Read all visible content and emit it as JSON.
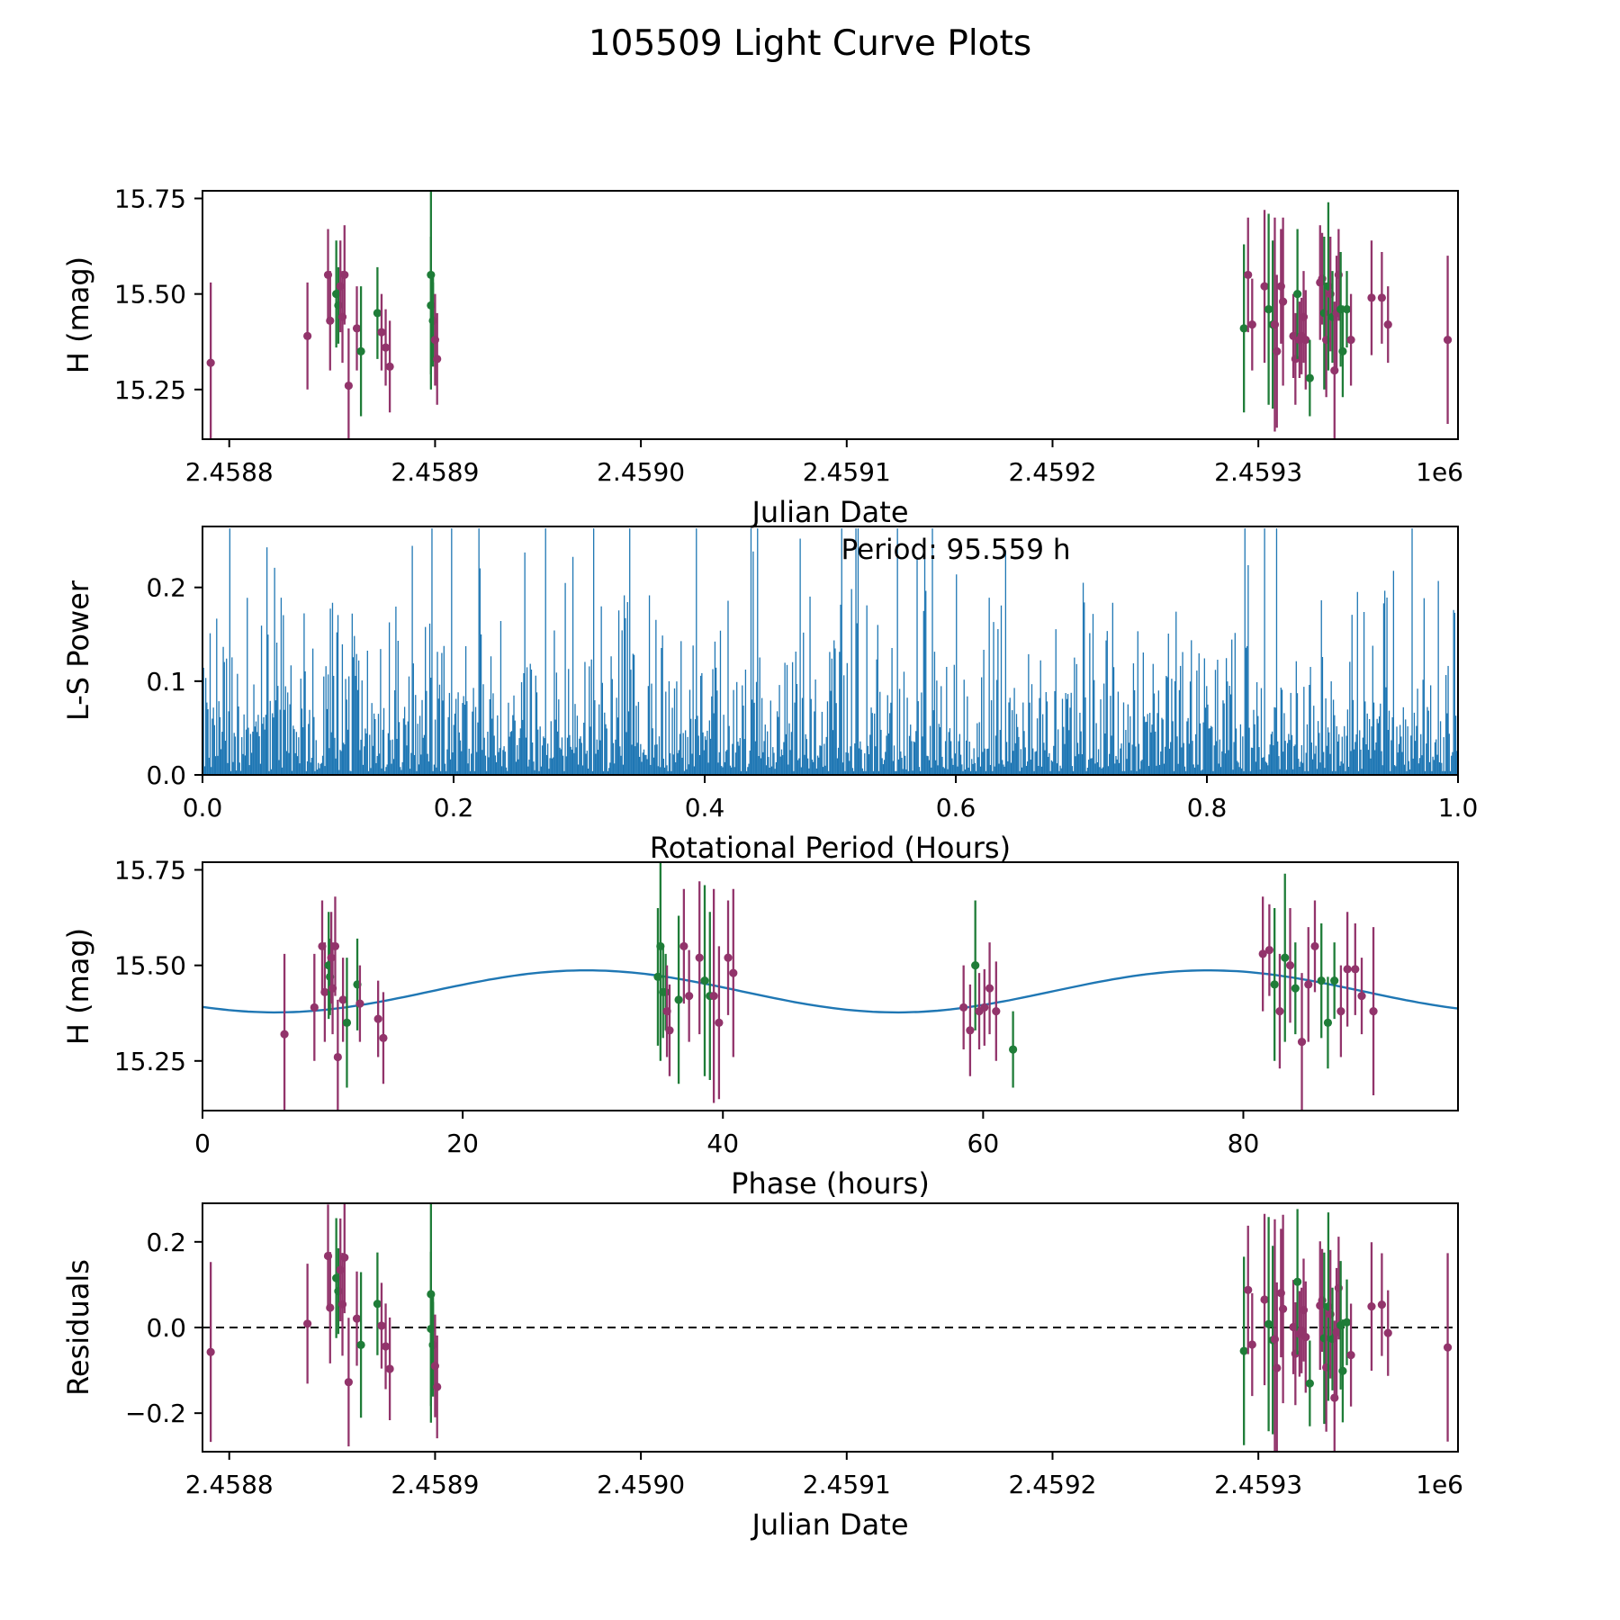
{
  "title": "105509 Light Curve Plots",
  "colors": {
    "series_purple": "#92346b",
    "series_green": "#1f7d38",
    "fit_line": "#1f77b4",
    "periodogram": "#1f77b4",
    "axis": "#000000",
    "zero_line": "#000000"
  },
  "chart_data": [
    {
      "id": "light_curve",
      "type": "errorbar",
      "x_field": "jd",
      "y_field": "m",
      "xlabel": "Julian Date",
      "ylabel": "H (mag)",
      "x_offset_text": "1e6",
      "xlim": [
        2458787,
        2459397
      ],
      "ylim": [
        15.12,
        15.77
      ],
      "xticks": [
        {
          "v": 2458800,
          "label": "2.4588"
        },
        {
          "v": 2458900,
          "label": "2.4589"
        },
        {
          "v": 2459000,
          "label": "2.4590"
        },
        {
          "v": 2459100,
          "label": "2.4591"
        },
        {
          "v": 2459200,
          "label": "2.4592"
        },
        {
          "v": 2459300,
          "label": "2.4593"
        }
      ],
      "yticks": [
        {
          "v": 15.25,
          "label": "15.25"
        },
        {
          "v": 15.5,
          "label": "15.50"
        },
        {
          "v": 15.75,
          "label": "15.75"
        }
      ],
      "points": [
        {
          "jd": 2458791,
          "ph": 6.3,
          "m": 15.32,
          "e": 0.21,
          "s": "p"
        },
        {
          "jd": 2458838,
          "ph": 8.6,
          "m": 15.39,
          "e": 0.14,
          "s": "p"
        },
        {
          "jd": 2458848,
          "ph": 9.2,
          "m": 15.55,
          "e": 0.12,
          "s": "p"
        },
        {
          "jd": 2458849,
          "ph": 9.4,
          "m": 15.43,
          "e": 0.13,
          "s": "p"
        },
        {
          "jd": 2458852,
          "ph": 9.7,
          "m": 15.5,
          "e": 0.14,
          "s": "g"
        },
        {
          "jd": 2458853,
          "ph": 9.8,
          "m": 15.47,
          "e": 0.1,
          "s": "g"
        },
        {
          "jd": 2458854,
          "ph": 9.9,
          "m": 15.52,
          "e": 0.12,
          "s": "p"
        },
        {
          "jd": 2458855,
          "ph": 10.0,
          "m": 15.44,
          "e": 0.12,
          "s": "p"
        },
        {
          "jd": 2458856,
          "ph": 10.2,
          "m": 15.55,
          "e": 0.13,
          "s": "p"
        },
        {
          "jd": 2458858,
          "ph": 10.4,
          "m": 15.26,
          "e": 0.15,
          "s": "p"
        },
        {
          "jd": 2458862,
          "ph": 10.8,
          "m": 15.41,
          "e": 0.11,
          "s": "p"
        },
        {
          "jd": 2458864,
          "ph": 11.1,
          "m": 15.35,
          "e": 0.17,
          "s": "g"
        },
        {
          "jd": 2458872,
          "ph": 11.9,
          "m": 15.45,
          "e": 0.12,
          "s": "g"
        },
        {
          "jd": 2458874,
          "ph": 12.1,
          "m": 15.4,
          "e": 0.1,
          "s": "p"
        },
        {
          "jd": 2458876,
          "ph": 13.5,
          "m": 15.36,
          "e": 0.1,
          "s": "p"
        },
        {
          "jd": 2458878,
          "ph": 13.9,
          "m": 15.31,
          "e": 0.12,
          "s": "p"
        },
        {
          "jd": 2458898,
          "ph": 35.0,
          "m": 15.47,
          "e": 0.18,
          "s": "g"
        },
        {
          "jd": 2458898,
          "ph": 35.2,
          "m": 15.55,
          "e": 0.3,
          "s": "g"
        },
        {
          "jd": 2458899,
          "ph": 35.4,
          "m": 15.43,
          "e": 0.12,
          "s": "g"
        },
        {
          "jd": 2458899,
          "ph": 35.6,
          "m": 15.43,
          "e": 0.1,
          "s": "g"
        },
        {
          "jd": 2458900,
          "ph": 35.7,
          "m": 15.38,
          "e": 0.12,
          "s": "p"
        },
        {
          "jd": 2458901,
          "ph": 35.9,
          "m": 15.33,
          "e": 0.12,
          "s": "p"
        },
        {
          "jd": 2459293,
          "ph": 36.6,
          "m": 15.41,
          "e": 0.22,
          "s": "g"
        },
        {
          "jd": 2459295,
          "ph": 37.0,
          "m": 15.55,
          "e": 0.15,
          "s": "p"
        },
        {
          "jd": 2459297,
          "ph": 37.4,
          "m": 15.42,
          "e": 0.12,
          "s": "p"
        },
        {
          "jd": 2459303,
          "ph": 38.2,
          "m": 15.52,
          "e": 0.2,
          "s": "p"
        },
        {
          "jd": 2459305,
          "ph": 38.6,
          "m": 15.46,
          "e": 0.25,
          "s": "g"
        },
        {
          "jd": 2459307,
          "ph": 39.0,
          "m": 15.42,
          "e": 0.22,
          "s": "g"
        },
        {
          "jd": 2459308,
          "ph": 39.3,
          "m": 15.42,
          "e": 0.28,
          "s": "p"
        },
        {
          "jd": 2459309,
          "ph": 39.7,
          "m": 15.35,
          "e": 0.2,
          "s": "p"
        },
        {
          "jd": 2459311,
          "ph": 40.4,
          "m": 15.52,
          "e": 0.15,
          "s": "p"
        },
        {
          "jd": 2459312,
          "ph": 40.8,
          "m": 15.48,
          "e": 0.22,
          "s": "p"
        },
        {
          "jd": 2459317,
          "ph": 58.5,
          "m": 15.39,
          "e": 0.11,
          "s": "p"
        },
        {
          "jd": 2459318,
          "ph": 59.0,
          "m": 15.33,
          "e": 0.12,
          "s": "p"
        },
        {
          "jd": 2459319,
          "ph": 59.4,
          "m": 15.5,
          "e": 0.17,
          "s": "g"
        },
        {
          "jd": 2459320,
          "ph": 59.7,
          "m": 15.38,
          "e": 0.1,
          "s": "p"
        },
        {
          "jd": 2459321,
          "ph": 60.1,
          "m": 15.39,
          "e": 0.1,
          "s": "p"
        },
        {
          "jd": 2459322,
          "ph": 60.5,
          "m": 15.44,
          "e": 0.12,
          "s": "p"
        },
        {
          "jd": 2459323,
          "ph": 61.0,
          "m": 15.38,
          "e": 0.13,
          "s": "p"
        },
        {
          "jd": 2459325,
          "ph": 62.3,
          "m": 15.28,
          "e": 0.1,
          "s": "g"
        },
        {
          "jd": 2459330,
          "ph": 81.5,
          "m": 15.53,
          "e": 0.15,
          "s": "p"
        },
        {
          "jd": 2459331,
          "ph": 82.0,
          "m": 15.54,
          "e": 0.12,
          "s": "p"
        },
        {
          "jd": 2459332,
          "ph": 82.4,
          "m": 15.45,
          "e": 0.2,
          "s": "g"
        },
        {
          "jd": 2459333,
          "ph": 82.8,
          "m": 15.38,
          "e": 0.15,
          "s": "p"
        },
        {
          "jd": 2459334,
          "ph": 83.2,
          "m": 15.52,
          "e": 0.22,
          "s": "g"
        },
        {
          "jd": 2459335,
          "ph": 83.6,
          "m": 15.5,
          "e": 0.15,
          "s": "p"
        },
        {
          "jd": 2459336,
          "ph": 84.0,
          "m": 15.44,
          "e": 0.12,
          "s": "g"
        },
        {
          "jd": 2459337,
          "ph": 84.5,
          "m": 15.3,
          "e": 0.18,
          "s": "p"
        },
        {
          "jd": 2459338,
          "ph": 85.0,
          "m": 15.45,
          "e": 0.15,
          "s": "p"
        },
        {
          "jd": 2459339,
          "ph": 85.5,
          "m": 15.55,
          "e": 0.12,
          "s": "p"
        },
        {
          "jd": 2459340,
          "ph": 86.0,
          "m": 15.46,
          "e": 0.15,
          "s": "g"
        },
        {
          "jd": 2459341,
          "ph": 86.5,
          "m": 15.35,
          "e": 0.12,
          "s": "g"
        },
        {
          "jd": 2459343,
          "ph": 87.0,
          "m": 15.46,
          "e": 0.1,
          "s": "g"
        },
        {
          "jd": 2459345,
          "ph": 87.5,
          "m": 15.38,
          "e": 0.12,
          "s": "p"
        },
        {
          "jd": 2459355,
          "ph": 88.0,
          "m": 15.49,
          "e": 0.15,
          "s": "p"
        },
        {
          "jd": 2459360,
          "ph": 88.6,
          "m": 15.49,
          "e": 0.12,
          "s": "p"
        },
        {
          "jd": 2459363,
          "ph": 89.1,
          "m": 15.42,
          "e": 0.1,
          "s": "p"
        },
        {
          "jd": 2459392,
          "ph": 90.0,
          "m": 15.38,
          "e": 0.22,
          "s": "p"
        }
      ]
    },
    {
      "id": "periodogram",
      "type": "periodogram",
      "xlabel": "Rotational Period (Hours)",
      "ylabel": "L-S Power",
      "xlim": [
        0,
        1
      ],
      "ylim": [
        0,
        0.265
      ],
      "xticks": [
        {
          "v": 0.0,
          "label": "0.0"
        },
        {
          "v": 0.2,
          "label": "0.2"
        },
        {
          "v": 0.4,
          "label": "0.4"
        },
        {
          "v": 0.6,
          "label": "0.6"
        },
        {
          "v": 0.8,
          "label": "0.8"
        },
        {
          "v": 1.0,
          "label": "1.0"
        }
      ],
      "yticks": [
        {
          "v": 0.0,
          "label": "0.0"
        },
        {
          "v": 0.1,
          "label": "0.1"
        },
        {
          "v": 0.2,
          "label": "0.2"
        }
      ],
      "annotation": {
        "text": "Period: 95.559 h",
        "x_frac": 0.6
      },
      "best_period_hours": 95.559,
      "spikes": {
        "n": 1150,
        "seed": 9,
        "mean_power": 0.06,
        "max_power": 0.263
      }
    },
    {
      "id": "phase_curve",
      "type": "errorbar",
      "points_source": "light_curve",
      "x_field": "ph",
      "y_field": "m",
      "xlabel": "Phase (hours)",
      "ylabel": "H (mag)",
      "xlim": [
        0,
        96.5
      ],
      "ylim": [
        15.12,
        15.77
      ],
      "xticks": [
        {
          "v": 0,
          "label": "0"
        },
        {
          "v": 20,
          "label": "20"
        },
        {
          "v": 40,
          "label": "40"
        },
        {
          "v": 60,
          "label": "60"
        },
        {
          "v": 80,
          "label": "80"
        }
      ],
      "yticks": [
        {
          "v": 15.25,
          "label": "15.25"
        },
        {
          "v": 15.5,
          "label": "15.50"
        },
        {
          "v": 15.75,
          "label": "15.75"
        }
      ],
      "fit": {
        "mean": 15.432,
        "amplitude": 0.055,
        "cycle_hours": 47.78,
        "phase_zero_hours": 17.56
      }
    },
    {
      "id": "residuals",
      "type": "errorbar",
      "points_source": "light_curve",
      "x_field": "jd",
      "y_field": "resid",
      "zero_line": true,
      "xlabel": "Julian Date",
      "ylabel": "Residuals",
      "x_offset_text": "1e6",
      "xlim": [
        2458787,
        2459397
      ],
      "ylim": [
        -0.29,
        0.29
      ],
      "xticks": [
        {
          "v": 2458800,
          "label": "2.4588"
        },
        {
          "v": 2458900,
          "label": "2.4589"
        },
        {
          "v": 2459000,
          "label": "2.4590"
        },
        {
          "v": 2459100,
          "label": "2.4591"
        },
        {
          "v": 2459200,
          "label": "2.4592"
        },
        {
          "v": 2459300,
          "label": "2.4593"
        }
      ],
      "yticks": [
        {
          "v": -0.2,
          "label": "−0.2"
        },
        {
          "v": 0.0,
          "label": "0.0"
        },
        {
          "v": 0.2,
          "label": "0.2"
        }
      ]
    }
  ]
}
